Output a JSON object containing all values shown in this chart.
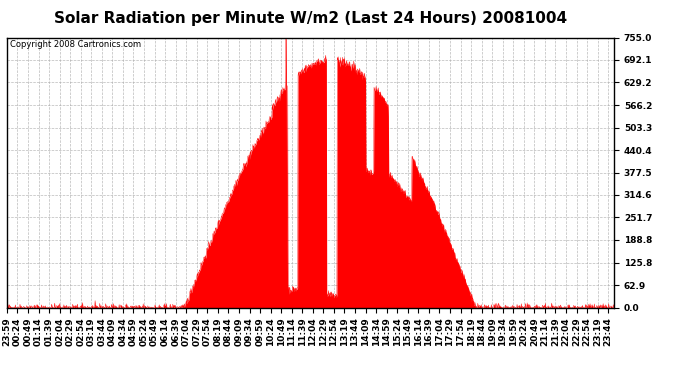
{
  "title": "Solar Radiation per Minute W/m2 (Last 24 Hours) 20081004",
  "copyright_text": "Copyright 2008 Cartronics.com",
  "ylabel_values": [
    0.0,
    62.9,
    125.8,
    188.8,
    251.7,
    314.6,
    377.5,
    440.4,
    503.3,
    566.2,
    629.2,
    692.1,
    755.0
  ],
  "ymin": 0.0,
  "ymax": 755.0,
  "fill_color": "#FF0000",
  "line_color": "#FF0000",
  "dashed_line_color": "#FF0000",
  "grid_color": "#AAAAAA",
  "background_color": "#FFFFFF",
  "plot_bg_color": "#FFFFFF",
  "title_fontsize": 11,
  "tick_fontsize": 6.5,
  "copyright_fontsize": 6
}
